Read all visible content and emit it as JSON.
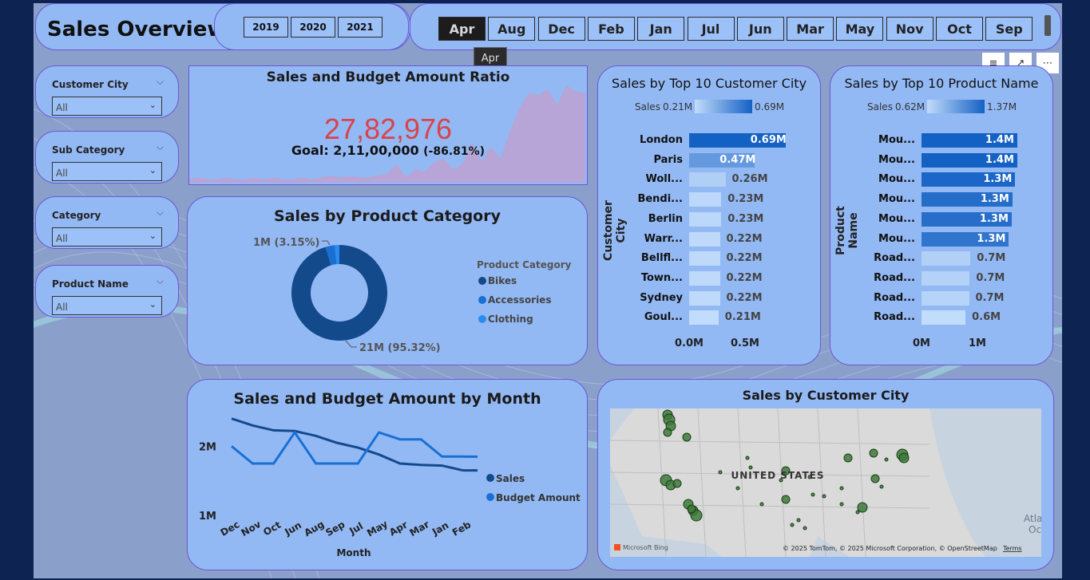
{
  "page_title": "Sales Overview",
  "years": [
    "2019",
    "2020",
    "2021"
  ],
  "months": [
    "Apr",
    "Aug",
    "Dec",
    "Feb",
    "Jan",
    "Jul",
    "Jun",
    "Mar",
    "May",
    "Nov",
    "Oct",
    "Sep"
  ],
  "selected_month": "Apr",
  "tooltip": "Apr",
  "filters": [
    {
      "label": "Customer City",
      "value": "All"
    },
    {
      "label": "Sub Category",
      "value": "All"
    },
    {
      "label": "Category",
      "value": "All"
    },
    {
      "label": "Product Name",
      "value": "All"
    }
  ],
  "kpi": {
    "title": "Sales and Budget Amount Ratio",
    "value": "27,82,976",
    "goal_text": "Goal: 2,11,00,000",
    "goal_pct": "(-86.81%)",
    "value_color": "#d9434b"
  },
  "chart_data": [
    {
      "type": "area",
      "title": "Sales and Budget Amount Ratio (trend)",
      "values": [
        1,
        2,
        1,
        1,
        2,
        1,
        1,
        2,
        1,
        2,
        1,
        1,
        2,
        1,
        2,
        3,
        2,
        3,
        2,
        2,
        3,
        4,
        9,
        2,
        6,
        5,
        10,
        12,
        6,
        9,
        20,
        10,
        18,
        12,
        26,
        38,
        46,
        45,
        48,
        40,
        50,
        47,
        46
      ]
    },
    {
      "type": "pie",
      "title": "Sales by Product Category",
      "legend_title": "Product Category",
      "categories": [
        "Bikes",
        "Accessories",
        "Clothing"
      ],
      "values": [
        95.32,
        3.15,
        1.53
      ],
      "colors": [
        "#124a8c",
        "#1a6fd4",
        "#2a8cf0"
      ],
      "labels": [
        "21M (95.32%)",
        "1M (3.15%)"
      ]
    },
    {
      "type": "bar",
      "title": "Sales by Top 10 Customer City",
      "ylabel": "Customer City",
      "legend_label": "Sales",
      "legend_min": "0.21M",
      "legend_max": "0.69M",
      "categories": [
        "London",
        "Paris",
        "Woll...",
        "Bendi...",
        "Berlin",
        "Warr...",
        "Bellfl...",
        "Town...",
        "Sydney",
        "Goul..."
      ],
      "values": [
        0.69,
        0.47,
        0.26,
        0.23,
        0.23,
        0.22,
        0.22,
        0.22,
        0.22,
        0.21
      ],
      "value_labels": [
        "0.69M",
        "0.47M",
        "0.26M",
        "0.23M",
        "0.23M",
        "0.22M",
        "0.22M",
        "0.22M",
        "0.22M",
        "0.21M"
      ],
      "xticks": [
        "0.0M",
        "0.5M"
      ],
      "xlim": [
        0,
        0.8
      ]
    },
    {
      "type": "bar",
      "title": "Sales by Top 10 Product Name",
      "ylabel": "Product Name",
      "legend_label": "Sales",
      "legend_min": "0.62M",
      "legend_max": "1.37M",
      "categories": [
        "Mou...",
        "Mou...",
        "Mou...",
        "Mou...",
        "Mou...",
        "Mou...",
        "Road...",
        "Road...",
        "Road...",
        "Road..."
      ],
      "values": [
        1.37,
        1.37,
        1.34,
        1.3,
        1.29,
        1.25,
        0.7,
        0.69,
        0.68,
        0.63
      ],
      "value_labels": [
        "1.4M",
        "1.4M",
        "1.3M",
        "1.3M",
        "1.3M",
        "1.3M",
        "0.7M",
        "0.7M",
        "0.7M",
        "0.6M"
      ],
      "xticks": [
        "0M",
        "1M"
      ],
      "xlim": [
        0,
        1.6
      ]
    },
    {
      "type": "line",
      "title": "Sales and Budget Amount by Month",
      "xlabel": "Month",
      "categories": [
        "Dec",
        "Nov",
        "Oct",
        "Jun",
        "Aug",
        "Sep",
        "Jul",
        "May",
        "Apr",
        "Mar",
        "Jan",
        "Feb"
      ],
      "yticks": [
        "2M",
        "1M"
      ],
      "ylim": [
        1,
        2.5
      ],
      "series": [
        {
          "name": "Sales",
          "values": [
            2.4,
            2.3,
            2.23,
            2.22,
            2.15,
            2.05,
            1.98,
            1.88,
            1.75,
            1.73,
            1.72,
            1.65
          ],
          "color": "#124a8c"
        },
        {
          "name": "Budget Amount",
          "values": [
            2.0,
            1.75,
            1.75,
            2.2,
            1.75,
            1.75,
            1.75,
            2.2,
            2.1,
            2.1,
            1.85,
            1.85
          ],
          "color": "#1a6fd4"
        }
      ]
    }
  ],
  "map": {
    "title": "Sales by Customer City",
    "country_label": "UNITED STATES",
    "ocean_label": "Atla Oc",
    "attribution": "© 2025 TomTom, © 2025 Microsoft Corporation, © OpenStreetMap",
    "terms": "Terms",
    "logo": "Microsoft Bing"
  }
}
